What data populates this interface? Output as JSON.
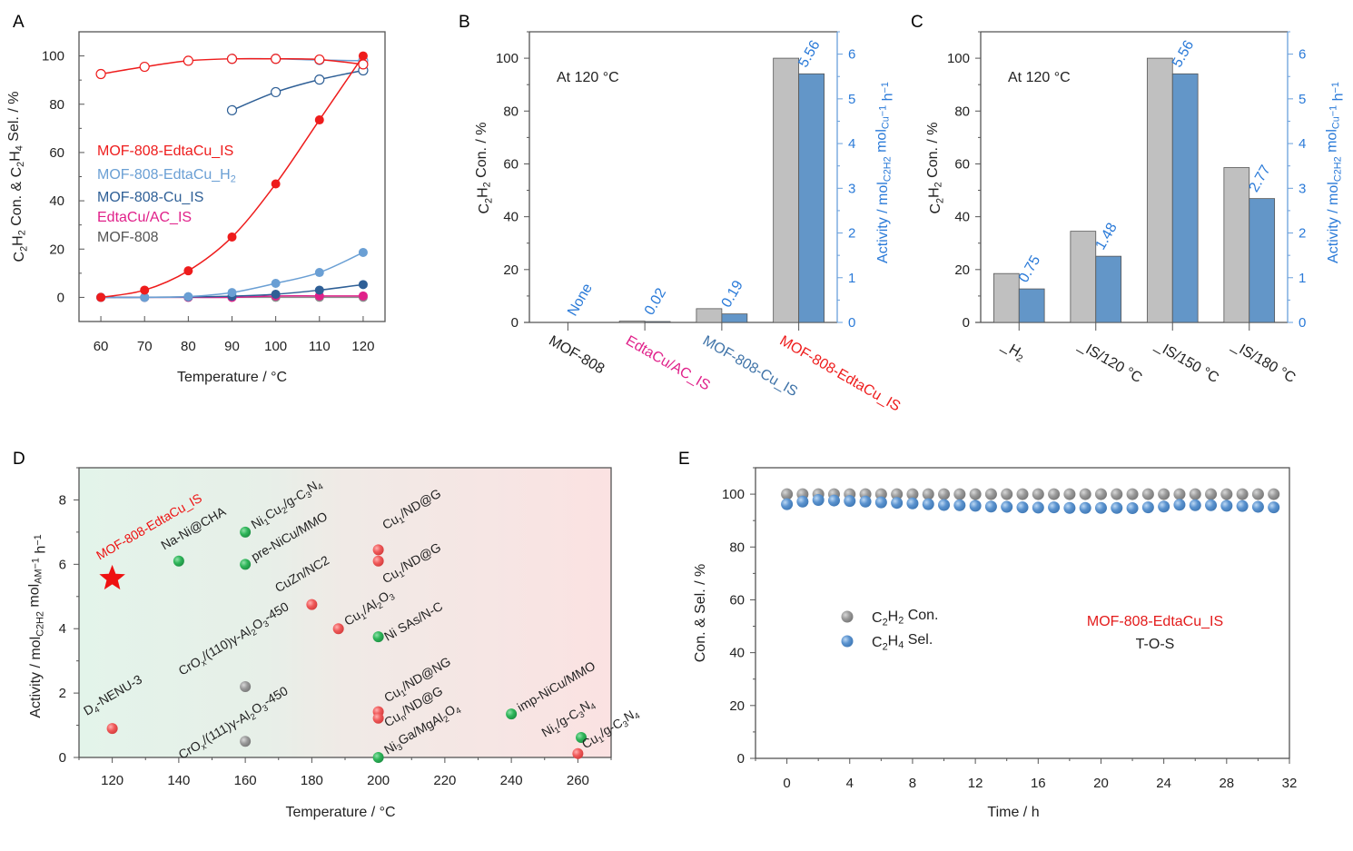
{
  "figure": {
    "panel_labels": [
      "A",
      "B",
      "C",
      "D",
      "E"
    ]
  },
  "chart_data": [
    {
      "panel": "A",
      "type": "line",
      "title": "",
      "xlabel": "Temperature / °C",
      "ylabel": "C2H2 Con. & C2H4 Sel. / %",
      "xlim": [
        55,
        125
      ],
      "ylim": [
        -10,
        110
      ],
      "xticks": [
        60,
        70,
        80,
        90,
        100,
        110,
        120
      ],
      "yticks": [
        0,
        20,
        40,
        60,
        80,
        100
      ],
      "legend": {
        "placement": "center-left",
        "entries": [
          {
            "label": "MOF-808-EdtaCu_IS",
            "color": "#ee1c1c"
          },
          {
            "label": "MOF-808-EdtaCu_H2",
            "color": "#6a9fd4"
          },
          {
            "label": "MOF-808-Cu_IS",
            "color": "#2e5f96"
          },
          {
            "label": "EdtaCu/AC_IS",
            "color": "#e0218a"
          },
          {
            "label": "MOF-808",
            "color": "#555555"
          }
        ]
      },
      "series": [
        {
          "name": "MOF-808-EdtaCu_IS conversion",
          "color": "#ee1c1c",
          "marker": "filled",
          "x": [
            60,
            70,
            80,
            90,
            100,
            110,
            120
          ],
          "y": [
            0,
            3,
            11,
            25,
            47,
            73.5,
            100
          ]
        },
        {
          "name": "MOF-808-EdtaCu_IS selectivity",
          "color": "#ee1c1c",
          "marker": "open",
          "x": [
            60,
            70,
            80,
            90,
            100,
            110,
            120
          ],
          "y": [
            92.5,
            95.5,
            98,
            98.8,
            98.8,
            98.5,
            96.5
          ]
        },
        {
          "name": "MOF-808-EdtaCu_H2 conversion",
          "color": "#6a9fd4",
          "marker": "filled",
          "x": [
            60,
            70,
            80,
            90,
            100,
            110,
            120
          ],
          "y": [
            0,
            0,
            0.3,
            2,
            5.8,
            10.3,
            18.6
          ]
        },
        {
          "name": "MOF-808-EdtaCu_H2 selectivity",
          "color": "#6a9fd4",
          "marker": "open",
          "x": [
            90,
            100,
            110,
            120
          ],
          "y": [
            98.8,
            98.8,
            98.3,
            98
          ]
        },
        {
          "name": "MOF-808-Cu_IS conversion",
          "color": "#2e5f96",
          "marker": "filled",
          "x": [
            60,
            70,
            80,
            90,
            100,
            110,
            120
          ],
          "y": [
            0,
            0,
            0.2,
            0.5,
            1.3,
            3,
            5.3
          ]
        },
        {
          "name": "MOF-808-Cu_IS selectivity",
          "color": "#2e5f96",
          "marker": "open",
          "x": [
            90,
            100,
            110,
            120
          ],
          "y": [
            77.5,
            85,
            90.2,
            94
          ]
        },
        {
          "name": "EdtaCu/AC_IS conversion",
          "color": "#e0218a",
          "marker": "filled",
          "x": [
            60,
            70,
            80,
            90,
            100,
            110,
            120
          ],
          "y": [
            0,
            0,
            0,
            0,
            0.6,
            0.6,
            0.6
          ]
        },
        {
          "name": "MOF-808 conversion",
          "color": "#8c8c8c",
          "marker": "filled",
          "x": [
            60,
            70,
            80,
            90,
            100,
            110,
            120
          ],
          "y": [
            0,
            0,
            0,
            0,
            0,
            0,
            0
          ]
        }
      ]
    },
    {
      "panel": "B",
      "type": "bar",
      "annotation": "At 120 °C",
      "ylabel": "C2H2 Con. / %",
      "y2label": "Activity / molC2H2 molCu−1 h−1",
      "ylim": [
        0,
        110
      ],
      "y2lim": [
        0,
        6.5
      ],
      "yticks": [
        0,
        20,
        40,
        60,
        80,
        100
      ],
      "y2ticks": [
        0,
        1,
        2,
        3,
        4,
        5,
        6
      ],
      "categories": [
        "MOF-808",
        "EdtaCu/AC_IS",
        "MOF-808-Cu_IS",
        "MOF-808-EdtaCu_IS"
      ],
      "category_colors": [
        "#222222",
        "#e0218a",
        "#3f73a8",
        "#ee1c1c"
      ],
      "series": [
        {
          "name": "C2H2 Con.",
          "axis": "left",
          "color": "#c0c0c0",
          "values": [
            0,
            0.5,
            5.2,
            100
          ]
        },
        {
          "name": "Activity",
          "axis": "right",
          "color": "#6396c8",
          "values": [
            0,
            0.02,
            0.19,
            5.56
          ]
        }
      ],
      "data_labels": [
        "None",
        "0.02",
        "0.19",
        "5.56"
      ]
    },
    {
      "panel": "C",
      "type": "bar",
      "annotation": "At 120 °C",
      "ylabel": "C2H2 Con. / %",
      "y2label": "Activity / molC2H2 molCu−1 h−1",
      "ylim": [
        0,
        110
      ],
      "y2lim": [
        0,
        6.5
      ],
      "yticks": [
        0,
        20,
        40,
        60,
        80,
        100
      ],
      "y2ticks": [
        0,
        1,
        2,
        3,
        4,
        5,
        6
      ],
      "categories": [
        "_H2",
        "_IS/120 °C",
        "_IS/150 °C",
        "_IS/180 °C"
      ],
      "series": [
        {
          "name": "C2H2 Con.",
          "axis": "left",
          "color": "#c0c0c0",
          "values": [
            18.5,
            34.5,
            100,
            58.6
          ]
        },
        {
          "name": "Activity",
          "axis": "right",
          "color": "#6396c8",
          "values": [
            0.75,
            1.48,
            5.56,
            2.77
          ]
        }
      ],
      "data_labels": [
        "0.75",
        "1.48",
        "5.56",
        "2.77"
      ]
    },
    {
      "panel": "D",
      "type": "scatter",
      "xlabel": "Temperature / °C",
      "ylabel": "Activity / molC2H2 molAM−1 h−1",
      "xlim": [
        110,
        270
      ],
      "ylim": [
        0,
        9
      ],
      "xticks": [
        120,
        140,
        160,
        180,
        200,
        220,
        240,
        260
      ],
      "yticks": [
        0,
        2,
        4,
        6,
        8
      ],
      "background": "gradient green→red",
      "points": [
        {
          "label": "MOF-808-EdtaCu_IS",
          "x": 120,
          "y": 5.56,
          "kind": "star",
          "color": "#ee1111"
        },
        {
          "label": "D4-NENU-3",
          "x": 120,
          "y": 0.9,
          "kind": "red",
          "color": "#f05a5a"
        },
        {
          "label": "Na-Ni@CHA",
          "x": 140,
          "y": 6.1,
          "kind": "green",
          "color": "#2fb65a"
        },
        {
          "label": "Ni1Cu2/g-C3N4",
          "x": 160,
          "y": 7.0,
          "kind": "green",
          "color": "#2fb65a"
        },
        {
          "label": "pre-NiCu/MMO",
          "x": 160,
          "y": 6.0,
          "kind": "green",
          "color": "#2fb65a"
        },
        {
          "label": "CrOx/(110)γ-Al2O3-450",
          "x": 160,
          "y": 2.2,
          "kind": "gray",
          "color": "#8e8e8e"
        },
        {
          "label": "CrOx/(111)γ-Al2O3-450",
          "x": 160,
          "y": 0.5,
          "kind": "gray",
          "color": "#8e8e8e"
        },
        {
          "label": "CuZn/NC2",
          "x": 180,
          "y": 4.75,
          "kind": "red",
          "color": "#f05a5a"
        },
        {
          "label": "Cu1/Al2O3",
          "x": 188,
          "y": 4.0,
          "kind": "red",
          "color": "#f05a5a"
        },
        {
          "label": "Cu1/ND@G",
          "x": 200,
          "y": 6.45,
          "kind": "red",
          "color": "#f05a5a"
        },
        {
          "label": "Cu1/ND@G",
          "x": 200,
          "y": 6.1,
          "kind": "red",
          "color": "#f05a5a"
        },
        {
          "label": "Ni SAs/N-C",
          "x": 200,
          "y": 3.75,
          "kind": "green",
          "color": "#2fb65a"
        },
        {
          "label": "Cu1/ND@NG",
          "x": 200,
          "y": 1.42,
          "kind": "red",
          "color": "#f05a5a"
        },
        {
          "label": "Cun/ND@G",
          "x": 200,
          "y": 1.22,
          "kind": "red",
          "color": "#f05a5a"
        },
        {
          "label": "Ni3Ga/MgAl2O4",
          "x": 200,
          "y": 0.0,
          "kind": "green",
          "color": "#2fb65a"
        },
        {
          "label": "imp-NiCu/MMO",
          "x": 240,
          "y": 1.35,
          "kind": "green",
          "color": "#2fb65a"
        },
        {
          "label": "Ni1/g-C3N4",
          "x": 261,
          "y": 0.62,
          "kind": "green",
          "color": "#2fb65a"
        },
        {
          "label": "Cu1/g-C3N4",
          "x": 260,
          "y": 0.12,
          "kind": "red",
          "color": "#f05a5a"
        }
      ]
    },
    {
      "panel": "E",
      "type": "scatter",
      "xlabel": "Time / h",
      "ylabel": "Con. & Sel. / %",
      "xlim": [
        -2,
        32
      ],
      "ylim": [
        0,
        110
      ],
      "xticks": [
        0,
        4,
        8,
        12,
        16,
        20,
        24,
        28,
        32
      ],
      "yticks": [
        0,
        20,
        40,
        60,
        80,
        100
      ],
      "legend": {
        "placement": "center-left",
        "entries": [
          {
            "label": "C2H2 Con.",
            "color": "#9a9a9a"
          },
          {
            "label": "C2H4 Sel.",
            "color": "#5b93cf"
          }
        ]
      },
      "annotation": [
        "MOF-808-EdtaCu_IS",
        "T-O-S"
      ],
      "series": [
        {
          "name": "C2H2 Con.",
          "color": "#9a9a9a",
          "x": [
            0,
            1,
            2,
            3,
            4,
            5,
            6,
            7,
            8,
            9,
            10,
            11,
            12,
            13,
            14,
            15,
            16,
            17,
            18,
            19,
            20,
            21,
            22,
            23,
            24,
            25,
            26,
            27,
            28,
            29,
            30,
            31
          ],
          "y": [
            100,
            100,
            100,
            100,
            100,
            100,
            100,
            100,
            100,
            100,
            100,
            100,
            100,
            100,
            100,
            100,
            100,
            100,
            100,
            100,
            100,
            100,
            100,
            100,
            100,
            100,
            100,
            100,
            100,
            100,
            100,
            100
          ]
        },
        {
          "name": "C2H4 Sel.",
          "color": "#5b93cf",
          "x": [
            0,
            1,
            2,
            3,
            4,
            5,
            6,
            7,
            8,
            9,
            10,
            11,
            12,
            13,
            14,
            15,
            16,
            17,
            18,
            19,
            20,
            21,
            22,
            23,
            24,
            25,
            26,
            27,
            28,
            29,
            30,
            31
          ],
          "y": [
            96.2,
            97.2,
            97.8,
            97.6,
            97.4,
            97.2,
            96.9,
            96.7,
            96.5,
            96.2,
            95.9,
            95.8,
            95.6,
            95.3,
            95.2,
            95.0,
            94.9,
            95.0,
            94.8,
            94.8,
            94.8,
            94.8,
            94.7,
            95.0,
            95.3,
            96.0,
            95.8,
            95.8,
            95.6,
            95.5,
            95.2,
            95.0
          ]
        }
      ]
    }
  ]
}
